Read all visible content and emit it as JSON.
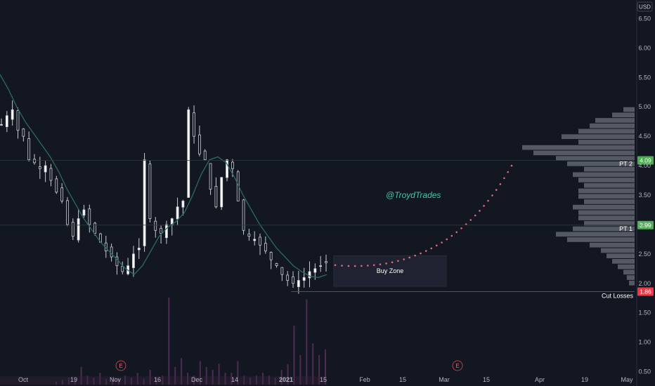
{
  "chart_data": {
    "type": "candlestick",
    "currency": "USD",
    "watermark": "@TroydTrades",
    "y_ticks": [
      "6.50",
      "6.00",
      "5.50",
      "5.00",
      "4.50",
      "4.00",
      "3.50",
      "3.00",
      "2.50",
      "2.00",
      "1.50",
      "1.00",
      "0.50"
    ],
    "y_tick_values": [
      6.5,
      6.0,
      5.5,
      5.0,
      4.5,
      4.0,
      3.5,
      3.0,
      2.5,
      2.0,
      1.5,
      1.0,
      0.5
    ],
    "ylim": [
      0.28,
      6.72
    ],
    "x_ticks": [
      {
        "label": "Oct",
        "bold": false
      },
      {
        "label": "19",
        "bold": false
      },
      {
        "label": "Nov",
        "bold": false
      },
      {
        "label": "16",
        "bold": false
      },
      {
        "label": "Dec",
        "bold": false
      },
      {
        "label": "14",
        "bold": false
      },
      {
        "label": "2021",
        "bold": true
      },
      {
        "label": "15",
        "bold": false
      },
      {
        "label": "Feb",
        "bold": false
      },
      {
        "label": "15",
        "bold": false
      },
      {
        "label": "Mar",
        "bold": false
      },
      {
        "label": "15",
        "bold": false
      },
      {
        "label": "Apr",
        "bold": false
      },
      {
        "label": "19",
        "bold": false
      },
      {
        "label": "May",
        "bold": false
      }
    ],
    "price_close_path": [
      4.7,
      4.85,
      4.95,
      4.6,
      4.5,
      4.1,
      4.05,
      3.95,
      4.0,
      3.75,
      3.55,
      3.4,
      3.0,
      2.8,
      3.1,
      3.25,
      3.0,
      2.85,
      2.7,
      2.55,
      2.45,
      2.3,
      2.2,
      2.3,
      2.5,
      2.6,
      4.1,
      3.1,
      2.9,
      2.85,
      3.0,
      3.1,
      3.3,
      3.4,
      4.95,
      4.5,
      4.2,
      4.1,
      3.6,
      3.3,
      3.8,
      4.1,
      3.95,
      3.4,
      2.9,
      2.8,
      2.75,
      2.65,
      2.55,
      2.4,
      2.3,
      2.15,
      2.05,
      2.0,
      2.05,
      2.1,
      2.2,
      2.25,
      2.3,
      2.35
    ],
    "ma_path": [
      5.55,
      5.3,
      5.0,
      4.75,
      4.55,
      4.35,
      4.15,
      3.9,
      3.6,
      3.35,
      3.1,
      2.9,
      2.7,
      2.55,
      2.4,
      2.25,
      2.15,
      2.3,
      2.55,
      2.8,
      2.95,
      3.05,
      3.2,
      3.5,
      3.85,
      4.1,
      4.15,
      4.05,
      3.8,
      3.5,
      3.25,
      3.0,
      2.8,
      2.6,
      2.45,
      2.3,
      2.2,
      2.12,
      2.1,
      2.15
    ],
    "volume_path": [
      0.05,
      0.08,
      0.12,
      0.1,
      0.3,
      0.15,
      0.12,
      0.2,
      0.1,
      0.12,
      0.1,
      0.15,
      0.12,
      0.2,
      0.1,
      0.25,
      0.12,
      0.15,
      1.48,
      0.3,
      0.45,
      0.2,
      0.15,
      0.4,
      0.3,
      0.25,
      0.35,
      0.2,
      0.2,
      0.4,
      0.15,
      0.12,
      0.15,
      0.2,
      0.15,
      0.12,
      0.25,
      0.35,
      1.0,
      0.5,
      1.45,
      0.7,
      0.5,
      0.6
    ],
    "levels": [
      {
        "name": "PT 2",
        "price": "4.09",
        "value": 4.09,
        "color": "#4caf50"
      },
      {
        "name": "PT 1",
        "price": "2.99",
        "value": 2.99,
        "color": "#4caf50"
      },
      {
        "name": "Cut Losses",
        "price": "1.86",
        "value": 1.86,
        "color": "#f23645"
      }
    ],
    "buy_zone": {
      "label": "Buy Zone",
      "top": 2.47,
      "bottom": 1.95
    },
    "projection": {
      "start": 2.31,
      "end": 4.0
    },
    "earnings_marker": "E",
    "volume_profile": [
      0.1,
      0.2,
      0.35,
      0.4,
      0.5,
      0.65,
      0.5,
      1.0,
      0.9,
      0.7,
      0.6,
      0.45,
      0.55,
      0.5,
      0.45,
      0.5,
      0.5,
      0.45,
      0.55,
      0.5,
      0.5,
      0.45,
      0.55,
      0.7,
      0.6,
      0.4,
      0.3,
      0.25,
      0.2,
      0.15,
      0.1,
      0.07,
      0.05
    ]
  }
}
